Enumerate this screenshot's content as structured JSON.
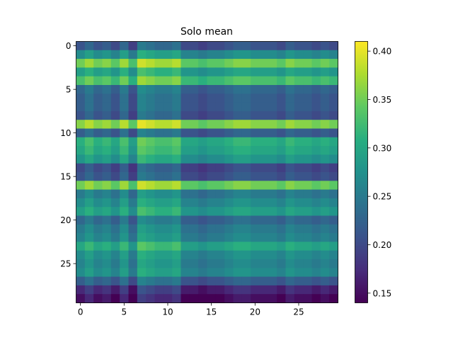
{
  "chart_data": {
    "type": "heatmap",
    "title": "Solo mean",
    "xlabel": "",
    "ylabel": "",
    "rows": 30,
    "cols": 30,
    "x_ticks": [
      "0",
      "5",
      "10",
      "15",
      "20",
      "25"
    ],
    "y_ticks": [
      "0",
      "5",
      "10",
      "15",
      "20",
      "25"
    ],
    "colorbar": {
      "min": 0.14,
      "max": 0.41,
      "ticks": [
        "0.15",
        "0.20",
        "0.25",
        "0.30",
        "0.35",
        "0.40"
      ],
      "colormap": "viridis"
    },
    "row_base": [
      0.21,
      0.27,
      0.35,
      0.29,
      0.33,
      0.23,
      0.22,
      0.22,
      0.21,
      0.36,
      0.22,
      0.31,
      0.3,
      0.28,
      0.2,
      0.21,
      0.35,
      0.25,
      0.27,
      0.29,
      0.23,
      0.25,
      0.26,
      0.3,
      0.27,
      0.26,
      0.27,
      0.22,
      0.17,
      0.15
    ],
    "col_offset": [
      0.0,
      0.02,
      0.0,
      0.01,
      -0.01,
      0.02,
      -0.02,
      0.04,
      0.03,
      0.02,
      0.02,
      0.03,
      -0.01,
      -0.01,
      -0.02,
      -0.01,
      -0.01,
      0.0,
      0.01,
      0.01,
      0.0,
      0.0,
      0.0,
      -0.01,
      0.01,
      0.0,
      0.0,
      -0.01,
      0.0,
      -0.01
    ]
  }
}
